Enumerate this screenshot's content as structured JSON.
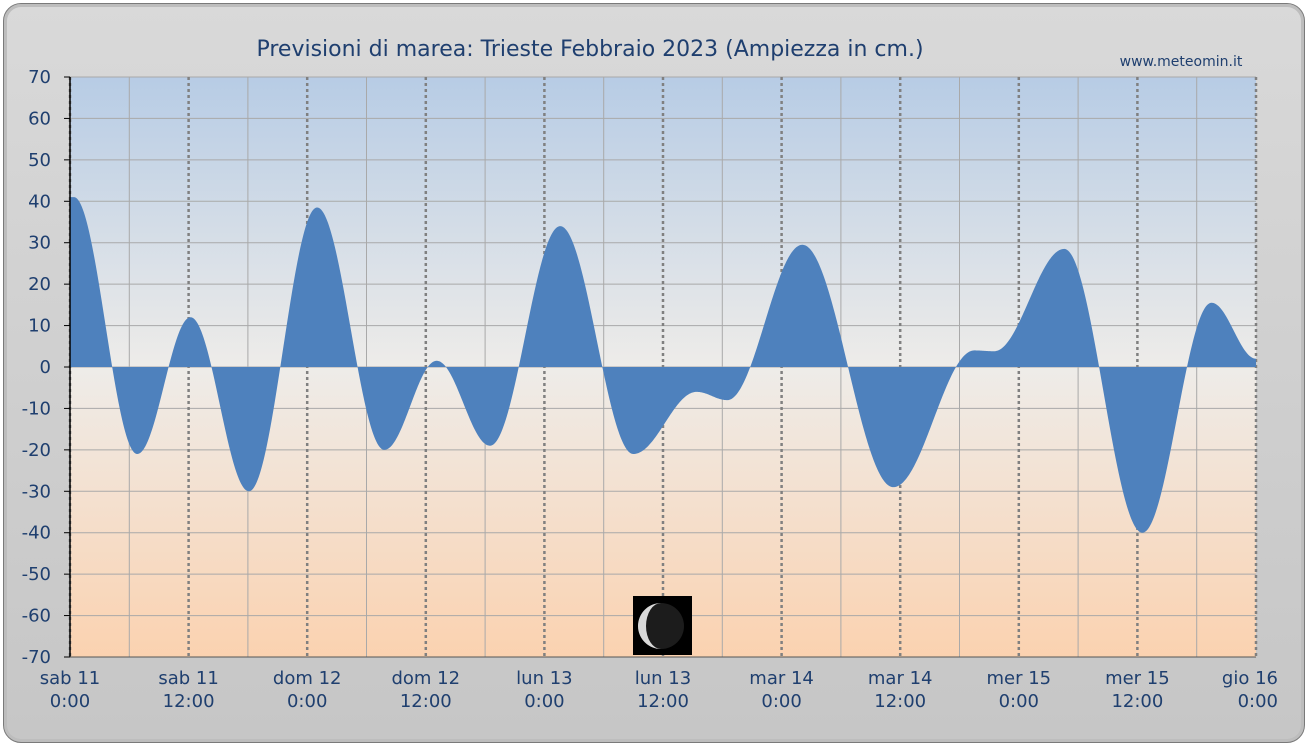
{
  "chart_data": {
    "type": "area",
    "title": "Previsioni di marea: Trieste Febbraio 2023 (Ampiezza in cm.)",
    "source_label": "www.meteomin.it",
    "ylim": [
      -70,
      70
    ],
    "ytick_step": 10,
    "xlim": [
      0,
      120
    ],
    "x_unit": "hours since sab 11 0:00",
    "grid": true,
    "colors": {
      "area": "#4e81bd",
      "text": "#1f3f6f",
      "grid": "#a9a9a9",
      "major_grid": "#808080"
    },
    "x_ticks": [
      {
        "hour": 0,
        "day": "sab",
        "date": "11",
        "time": "0:00"
      },
      {
        "hour": 12,
        "day": "sab",
        "date": "11",
        "time": "12:00"
      },
      {
        "hour": 24,
        "day": "dom",
        "date": "12",
        "time": "0:00"
      },
      {
        "hour": 36,
        "day": "dom",
        "date": "12",
        "time": "12:00"
      },
      {
        "hour": 48,
        "day": "lun",
        "date": "13",
        "time": "0:00"
      },
      {
        "hour": 60,
        "day": "lun",
        "date": "13",
        "time": "12:00"
      },
      {
        "hour": 72,
        "day": "mar",
        "date": "14",
        "time": "0:00"
      },
      {
        "hour": 84,
        "day": "mar",
        "date": "14",
        "time": "12:00"
      },
      {
        "hour": 96,
        "day": "mer",
        "date": "15",
        "time": "0:00"
      },
      {
        "hour": 108,
        "day": "mer",
        "date": "15",
        "time": "12:00"
      },
      {
        "hour": 120,
        "day": "gio",
        "date": "16",
        "time": "0:00"
      }
    ],
    "extrema": [
      {
        "hour": 0.4,
        "value": 41
      },
      {
        "hour": 6.8,
        "value": -21
      },
      {
        "hour": 12.2,
        "value": 12
      },
      {
        "hour": 18.1,
        "value": -30
      },
      {
        "hour": 25.0,
        "value": 38.5
      },
      {
        "hour": 31.8,
        "value": -20
      },
      {
        "hour": 37.1,
        "value": 1.5
      },
      {
        "hour": 42.5,
        "value": -19
      },
      {
        "hour": 49.6,
        "value": 34
      },
      {
        "hour": 57.0,
        "value": -21
      },
      {
        "hour": 63.4,
        "value": -6
      },
      {
        "hour": 66.5,
        "value": -8
      },
      {
        "hour": 74.1,
        "value": 29.5
      },
      {
        "hour": 83.3,
        "value": -29
      },
      {
        "hour": 91.5,
        "value": 4
      },
      {
        "hour": 93.5,
        "value": 3.8
      },
      {
        "hour": 100.6,
        "value": 28.5
      },
      {
        "hour": 108.5,
        "value": -40
      },
      {
        "hour": 115.5,
        "value": 15.5
      },
      {
        "hour": 120.0,
        "value": 2
      }
    ],
    "moon_phase": {
      "icon": "waning-crescent-moon-icon",
      "hour": 60
    }
  }
}
